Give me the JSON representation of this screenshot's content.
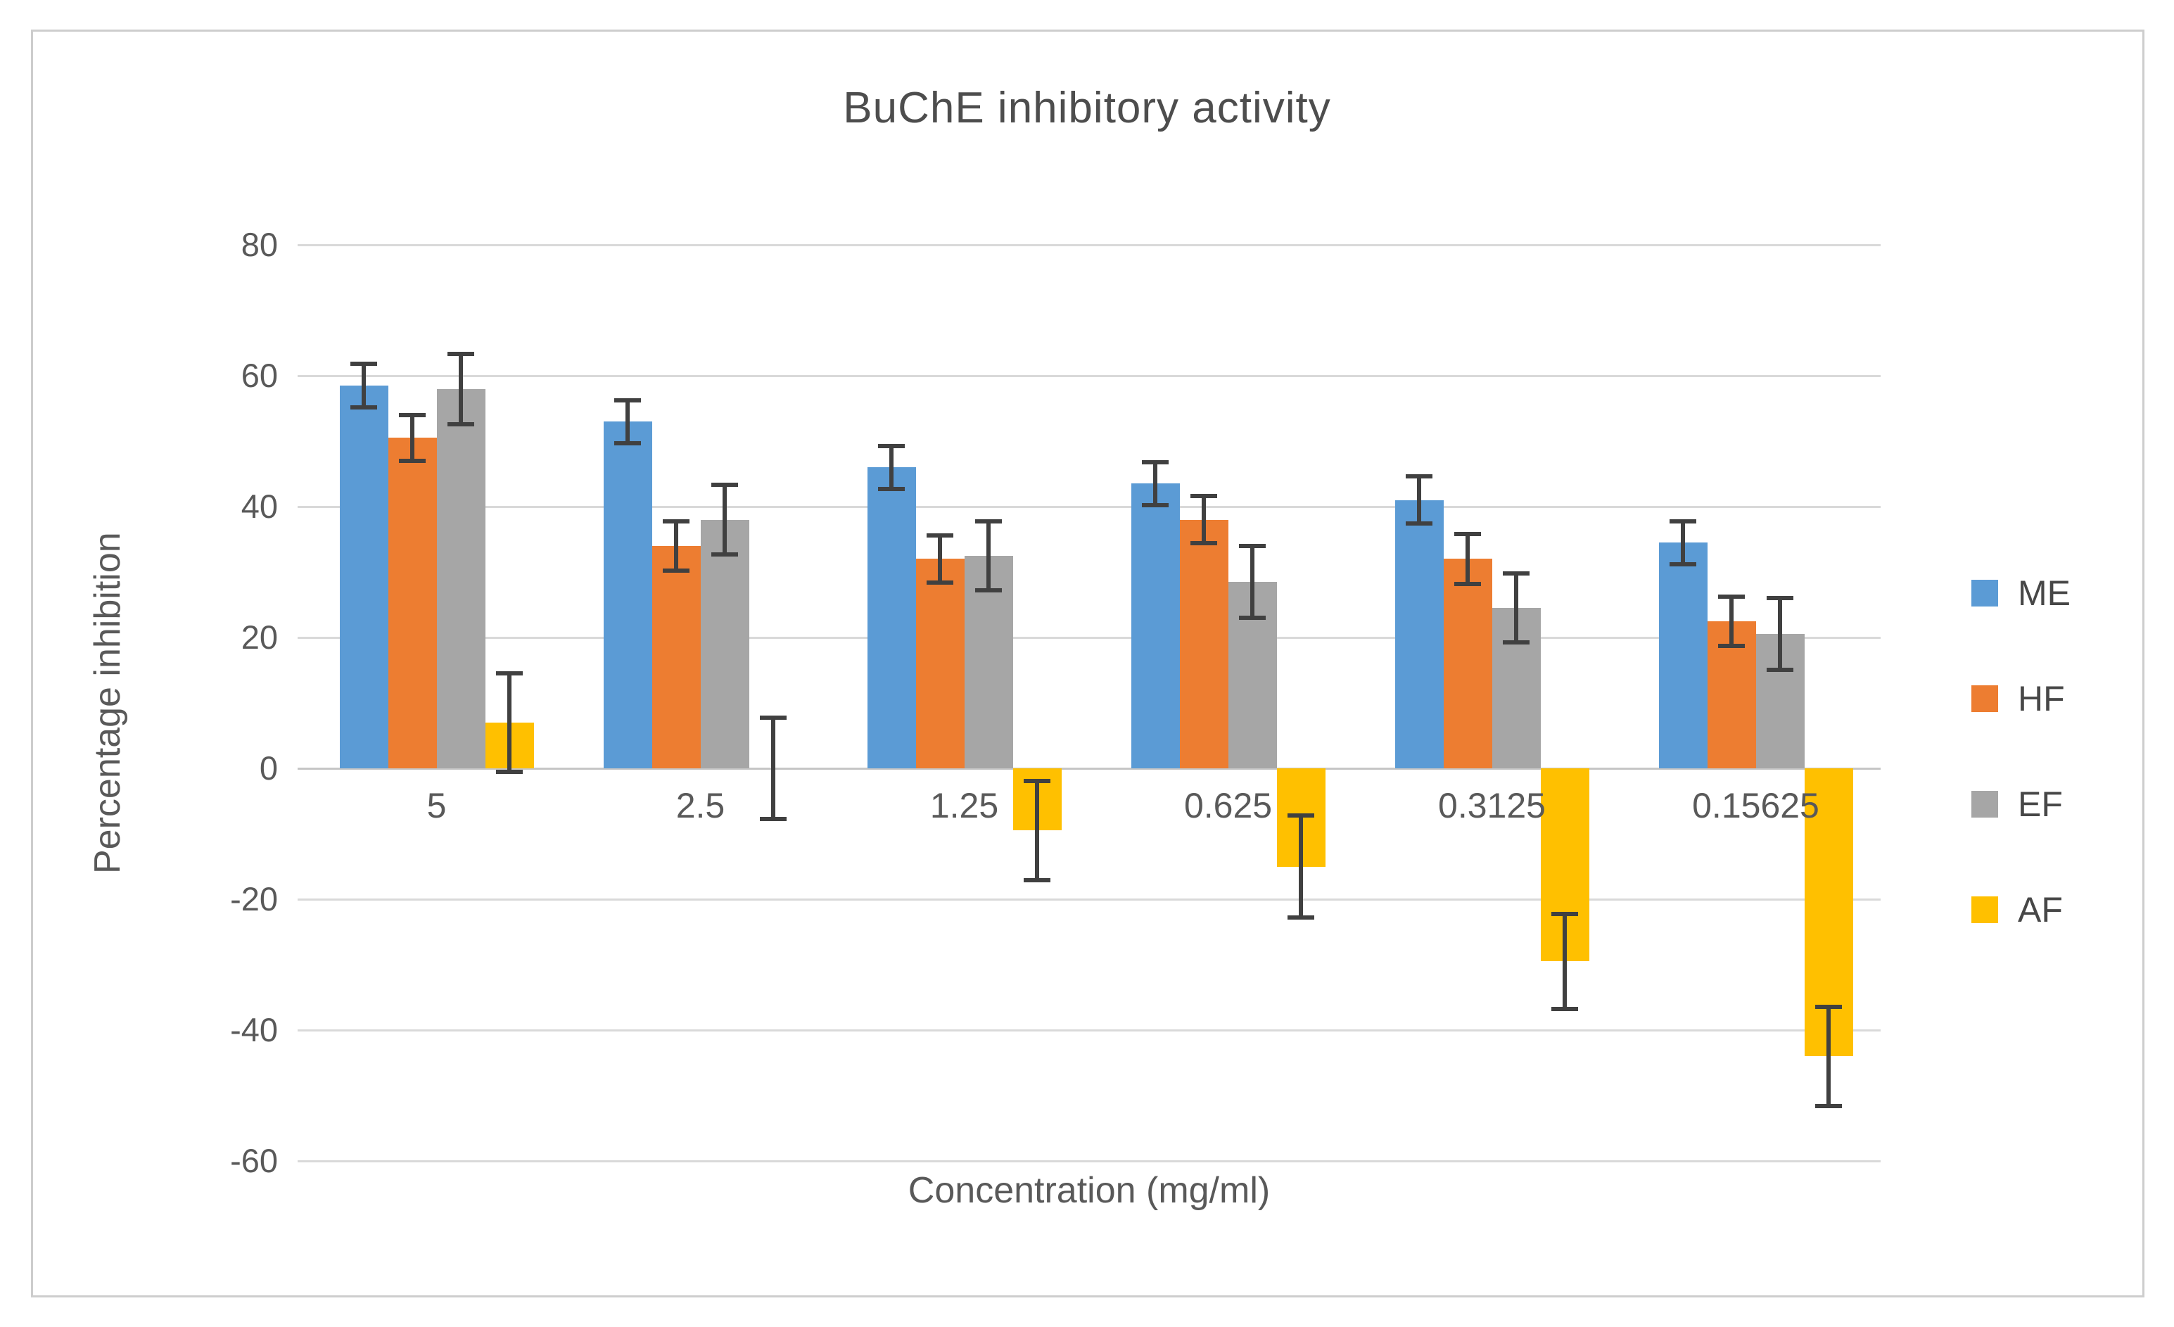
{
  "figure": {
    "title": "BuChE inhibitory activity",
    "x_axis_title": "Concentration (mg/ml)",
    "y_axis_title": "Percentage inhibition"
  },
  "chart_data": {
    "type": "bar",
    "title": "BuChE inhibitory activity",
    "xlabel": "Concentration (mg/ml)",
    "ylabel": "Percentage inhibition",
    "categories": [
      "5",
      "2.5",
      "1.25",
      "0.625",
      "0.3125",
      "0.15625"
    ],
    "series": [
      {
        "name": "ME",
        "color": "#5B9BD5",
        "values": [
          58.5,
          53,
          46,
          43.5,
          41,
          34.5
        ],
        "errors": [
          3.5,
          3.5,
          3.5,
          3.5,
          3.8,
          3.5
        ]
      },
      {
        "name": "HF",
        "color": "#ED7D31",
        "values": [
          50.5,
          34,
          32,
          38,
          32,
          22.5
        ],
        "errors": [
          3.7,
          4,
          3.8,
          3.8,
          4,
          4
        ]
      },
      {
        "name": "EF",
        "color": "#A6A6A6",
        "values": [
          58,
          38,
          32.5,
          28.5,
          24.5,
          20.5
        ],
        "errors": [
          5.6,
          5.5,
          5.5,
          5.7,
          5.5,
          5.7
        ]
      },
      {
        "name": "AF",
        "color": "#FFC000",
        "values": [
          7,
          0,
          -9.5,
          -15,
          -29.5,
          -44
        ],
        "errors": [
          7.7,
          8,
          7.8,
          8,
          7.5,
          7.8
        ]
      }
    ],
    "ylim": [
      -60,
      80
    ],
    "ytick_step": 20,
    "grid": true,
    "legend_position": "right",
    "grid_color": "#D9D9D9",
    "zero_axis_color": "#C6C6C6",
    "error_bar_color": "#404040",
    "tick_text_color": "#595959"
  }
}
